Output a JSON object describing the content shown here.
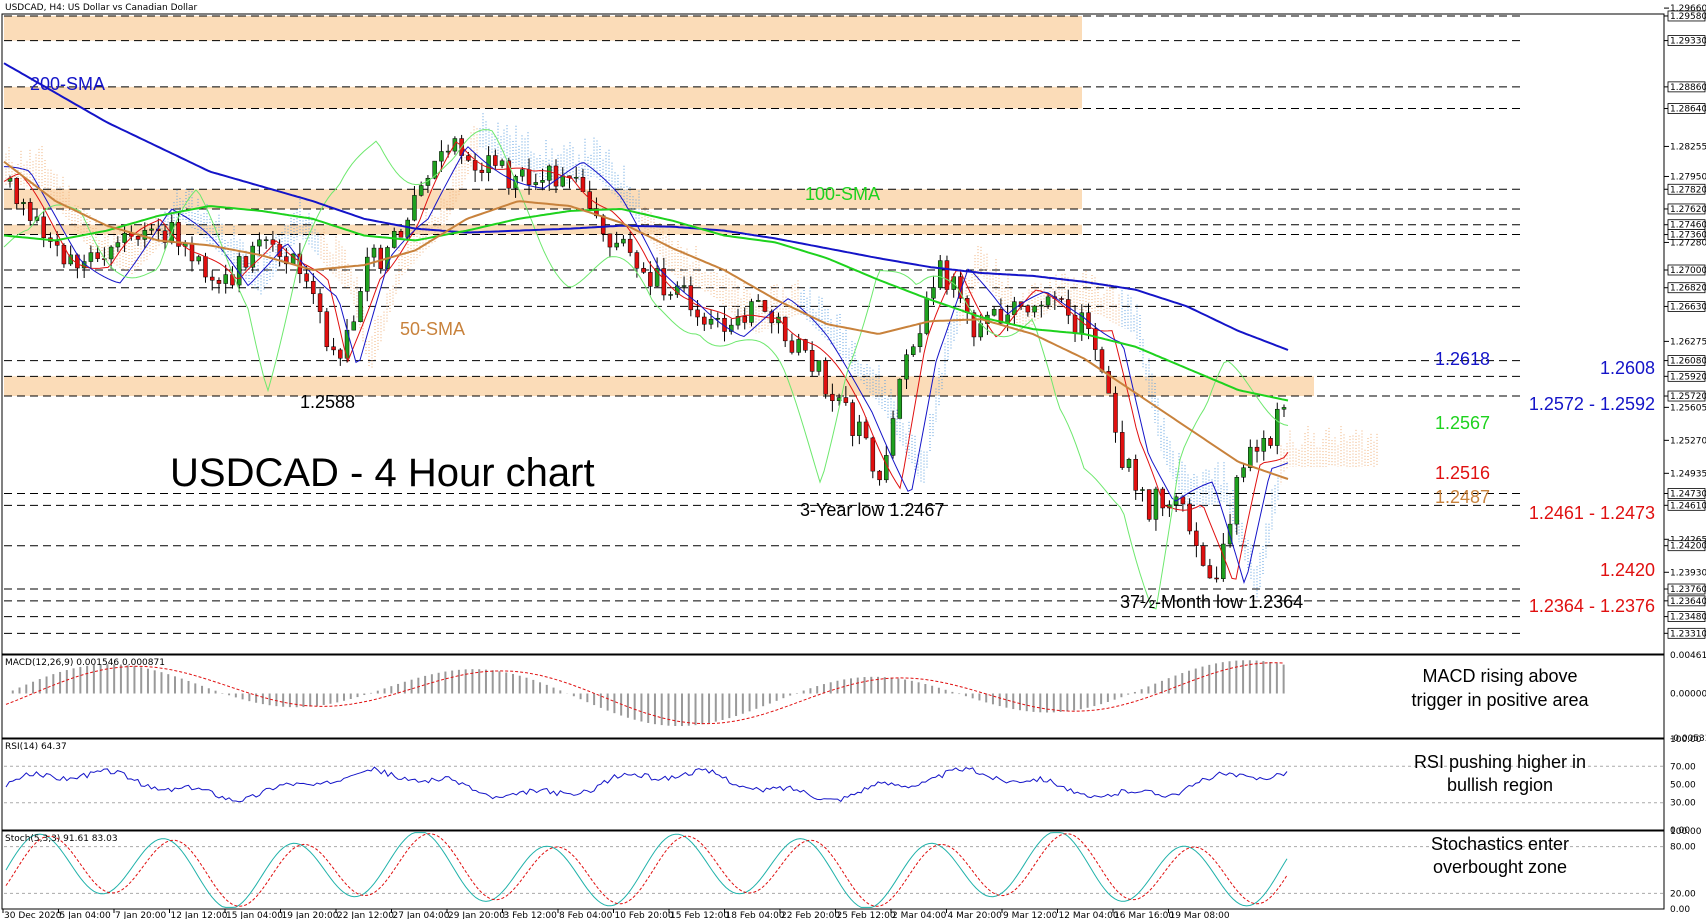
{
  "chart_data": {
    "type": "line",
    "symbol": "USDCAD",
    "header": "USDCAD, H4:  US Dollar vs Canadian Dollar",
    "title": "USDCAD - 4 Hour chart",
    "ylim": [
      1.231,
      1.296
    ],
    "price_axis_ticks": [
      "1.29660",
      "1.29580",
      "1.29330",
      "1.28860",
      "1.28640",
      "1.28255",
      "1.27950",
      "1.27820",
      "1.27620",
      "1.27460",
      "1.27360",
      "1.27280",
      "1.27000",
      "1.26820",
      "1.26630",
      "1.26275",
      "1.26080",
      "1.25920",
      "1.25720",
      "1.25605",
      "1.25270",
      "1.24935",
      "1.24730",
      "1.24610",
      "1.24265",
      "1.24200",
      "1.23930",
      "1.23760",
      "1.23640",
      "1.23480",
      "1.23310"
    ],
    "highlight_ticks": [
      "1.29580",
      "1.29330",
      "1.28860",
      "1.28640",
      "1.27820",
      "1.27620",
      "1.27460",
      "1.27360",
      "1.27000",
      "1.26820",
      "1.26630",
      "1.26080",
      "1.25920",
      "1.25720",
      "1.24730",
      "1.24610",
      "1.24200",
      "1.23760",
      "1.23640",
      "1.23480",
      "1.23310"
    ],
    "resistance_zones": [
      [
        1.2933,
        1.2958
      ],
      [
        1.2864,
        1.2886
      ],
      [
        1.2762,
        1.2782
      ],
      [
        1.2736,
        1.2746
      ],
      [
        1.2572,
        1.2592
      ]
    ],
    "dashed_levels": [
      1.2958,
      1.2933,
      1.2886,
      1.2864,
      1.2782,
      1.2762,
      1.2746,
      1.2736,
      1.27,
      1.2682,
      1.2663,
      1.2608,
      1.2592,
      1.2572,
      1.2473,
      1.2461,
      1.242,
      1.2376,
      1.2364,
      1.2348,
      1.2331
    ],
    "x_tick_labels": [
      "30 Dec 2020",
      "5 Jan 04:00",
      "7 Jan 20:00",
      "12 Jan 12:00",
      "15 Jan 04:00",
      "19 Jan 20:00",
      "22 Jan 12:00",
      "27 Jan 04:00",
      "29 Jan 20:00",
      "3 Feb 12:00",
      "8 Feb 04:00",
      "10 Feb 20:00",
      "15 Feb 12:00",
      "18 Feb 04:00",
      "22 Feb 20:00",
      "25 Feb 12:00",
      "2 Mar 04:00",
      "4 Mar 20:00",
      "9 Mar 12:00",
      "12 Mar 04:00",
      "16 Mar 16:00",
      "19 Mar 08:00"
    ],
    "series": [
      {
        "name": "200-SMA",
        "color": "#1414c8",
        "values": [
          1.291,
          1.288,
          1.285,
          1.2825,
          1.28,
          1.2785,
          1.277,
          1.2752,
          1.2742,
          1.2738,
          1.274,
          1.2742,
          1.2745,
          1.2744,
          1.274,
          1.2732,
          1.2722,
          1.2712,
          1.2703,
          1.2697,
          1.2694,
          1.2688,
          1.268,
          1.2663,
          1.2638,
          1.2618
        ]
      },
      {
        "name": "100-SMA",
        "color": "#1ed21e",
        "values": [
          1.2735,
          1.273,
          1.274,
          1.2755,
          1.2765,
          1.276,
          1.2752,
          1.2735,
          1.273,
          1.274,
          1.2752,
          1.276,
          1.2762,
          1.275,
          1.2735,
          1.2728,
          1.2712,
          1.269,
          1.267,
          1.2652,
          1.264,
          1.2635,
          1.2622,
          1.26,
          1.2578,
          1.2567
        ]
      },
      {
        "name": "50-SMA",
        "color": "#c8823c",
        "values": [
          1.281,
          1.277,
          1.2745,
          1.273,
          1.2725,
          1.2715,
          1.27,
          1.2705,
          1.272,
          1.2752,
          1.277,
          1.2765,
          1.2748,
          1.2722,
          1.27,
          1.267,
          1.2645,
          1.2635,
          1.2648,
          1.265,
          1.2635,
          1.261,
          1.2575,
          1.254,
          1.2505,
          1.2487
        ]
      }
    ],
    "annotations": {
      "low_1": "1.2588",
      "low_2": "3-Year low 1.2467",
      "low_3": "37½-Month low 1.2364",
      "sma200_value": "1.2618",
      "sma100_value": "1.2567",
      "sma50_value": "1.2487",
      "level_1": "1.2608",
      "zone_1": "1.2572 - 1.2592",
      "level_2": "1.2516",
      "zone_2": "1.2461 - 1.2473",
      "level_3": "1.2420",
      "zone_3": "1.2364 - 1.2376"
    },
    "indicators": {
      "macd": {
        "label": "MACD(12,26,9) 0.001546 0.000871",
        "ticks": [
          "0.004617",
          "0.000000",
          "-0.005339"
        ],
        "note": "MACD rising above trigger in positive area"
      },
      "rsi": {
        "label": "RSI(14) 64.37",
        "ticks": [
          "100.00",
          "70.00",
          "50.00",
          "30.00",
          "0.00"
        ],
        "note": "RSI pushing higher in bullish region"
      },
      "stoch": {
        "label": "Stoch(5,3,3) 91.61 83.03",
        "ticks": [
          "100.00",
          "80.00",
          "20.00",
          "0.00"
        ],
        "note": "Stochastics enter overbought zone"
      }
    }
  },
  "colors": {
    "zone": "#fbdcb8",
    "candle_up": "#1fa01f",
    "candle_down": "#e01010",
    "annotation_red": "#e01010",
    "annotation_blue": "#1414c8",
    "annotation_green": "#1ed21e",
    "annotation_brown": "#c8823c"
  }
}
